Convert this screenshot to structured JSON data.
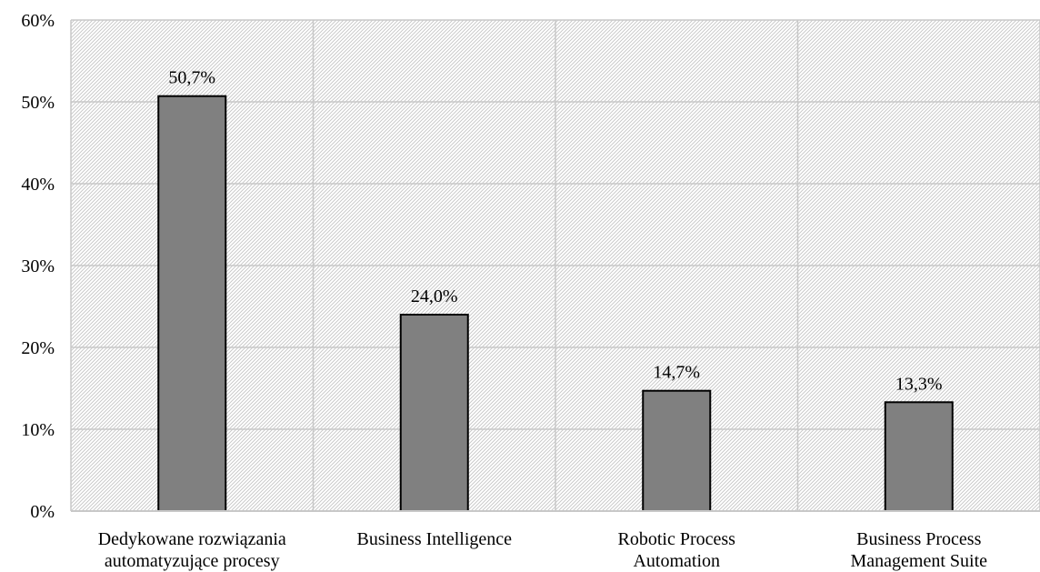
{
  "chart_data": {
    "type": "bar",
    "categories": [
      [
        "Dedykowane rozwiązania",
        "automatyzujące procesy"
      ],
      [
        "Business Intelligence"
      ],
      [
        "Robotic Process",
        "Automation"
      ],
      [
        "Business Process",
        "Management Suite"
      ]
    ],
    "values": [
      50.7,
      24.0,
      14.7,
      13.3
    ],
    "data_labels": [
      "50,7%",
      "24,0%",
      "14,7%",
      "13,3%"
    ],
    "ylim": [
      0,
      60
    ],
    "yticks": [
      0,
      10,
      20,
      30,
      40,
      50,
      60
    ],
    "ytick_labels": [
      "0%",
      "10%",
      "20%",
      "30%",
      "40%",
      "50%",
      "60%"
    ],
    "grid": true,
    "legend": "none",
    "colors": {
      "bar_fill": "#808080",
      "bar_stroke": "#000000",
      "grid": "#c8c8c8",
      "hatch": "#c8c8c8",
      "background": "#ffffff"
    }
  }
}
